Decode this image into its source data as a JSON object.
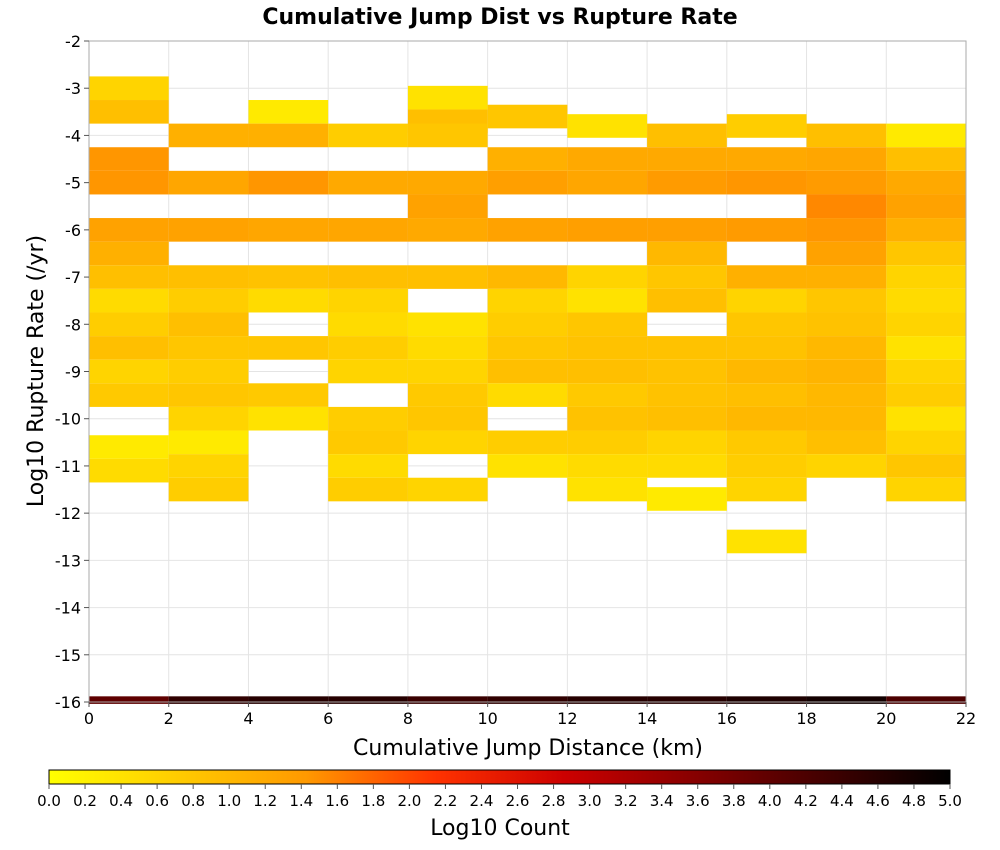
{
  "chart_data": {
    "type": "heatmap",
    "title": "Cumulative Jump Dist vs Rupture Rate",
    "xlabel": "Cumulative Jump Distance (km)",
    "ylabel": "Log10 Rupture Rate (/yr)",
    "xlim": [
      0,
      22
    ],
    "ylim": [
      -16,
      -2
    ],
    "x_ticks": [
      "0",
      "2",
      "4",
      "6",
      "8",
      "10",
      "12",
      "14",
      "16",
      "18",
      "20",
      "22"
    ],
    "y_ticks": [
      "-2",
      "-3",
      "-4",
      "-5",
      "-6",
      "-7",
      "-8",
      "-9",
      "-10",
      "-11",
      "-12",
      "-13",
      "-14",
      "-15",
      "-16"
    ],
    "grid": true,
    "x_bin_width": 2,
    "y_bin_height": 0.1,
    "colorbar": {
      "label": "Log10 Count",
      "range": [
        0,
        5
      ],
      "ticks": [
        "0.0",
        "0.2",
        "0.4",
        "0.6",
        "0.8",
        "1.0",
        "1.2",
        "1.4",
        "1.6",
        "1.8",
        "2.0",
        "2.2",
        "2.4",
        "2.6",
        "2.8",
        "3.0",
        "3.2",
        "3.4",
        "3.6",
        "3.8",
        "4.0",
        "4.2",
        "4.4",
        "4.6",
        "4.8",
        "5.0"
      ],
      "colors": [
        "#ffff00",
        "#ffcc00",
        "#ff9900",
        "#ff3300",
        "#cc0000",
        "#880000",
        "#440000",
        "#000000"
      ],
      "placement": "bottom"
    },
    "columns": [
      {
        "x": 1,
        "cells": [
          [
            -3.0,
            0.6
          ],
          [
            -3.5,
            0.9
          ],
          [
            -4.5,
            1.45
          ],
          [
            -5.0,
            1.45
          ],
          [
            -6.0,
            1.3
          ],
          [
            -6.5,
            1.1
          ],
          [
            -7.0,
            0.9
          ],
          [
            -7.5,
            0.5
          ],
          [
            -8.0,
            0.7
          ],
          [
            -8.5,
            0.9
          ],
          [
            -9.0,
            0.6
          ],
          [
            -9.5,
            0.75
          ],
          [
            -10.6,
            0.3
          ],
          [
            -11.1,
            0.5
          ]
        ]
      },
      {
        "x": 3,
        "cells": [
          [
            -4.0,
            1.1
          ],
          [
            -5.0,
            1.25
          ],
          [
            -6.0,
            1.3
          ],
          [
            -7.0,
            0.9
          ],
          [
            -7.5,
            0.7
          ],
          [
            -8.0,
            0.9
          ],
          [
            -8.5,
            0.8
          ],
          [
            -9.0,
            0.7
          ],
          [
            -9.5,
            0.8
          ],
          [
            -10.0,
            0.6
          ],
          [
            -10.5,
            0.3
          ],
          [
            -11.0,
            0.6
          ],
          [
            -11.5,
            0.7
          ]
        ]
      },
      {
        "x": 5,
        "cells": [
          [
            -3.5,
            0.3
          ],
          [
            -4.0,
            1.1
          ],
          [
            -5.0,
            1.45
          ],
          [
            -6.0,
            1.25
          ],
          [
            -7.0,
            0.85
          ],
          [
            -7.5,
            0.5
          ],
          [
            -8.5,
            0.8
          ],
          [
            -9.5,
            0.75
          ],
          [
            -10.0,
            0.4
          ]
        ]
      },
      {
        "x": 7,
        "cells": [
          [
            -4.0,
            0.7
          ],
          [
            -5.0,
            1.2
          ],
          [
            -6.0,
            1.25
          ],
          [
            -7.0,
            0.9
          ],
          [
            -7.5,
            0.6
          ],
          [
            -8.0,
            0.5
          ],
          [
            -8.5,
            0.7
          ],
          [
            -9.0,
            0.6
          ],
          [
            -10.0,
            0.7
          ],
          [
            -10.5,
            0.75
          ],
          [
            -11.0,
            0.5
          ],
          [
            -11.5,
            0.7
          ]
        ]
      },
      {
        "x": 9,
        "cells": [
          [
            -3.2,
            0.4
          ],
          [
            -3.7,
            0.9
          ],
          [
            -4.0,
            0.8
          ],
          [
            -5.0,
            1.2
          ],
          [
            -5.5,
            1.3
          ],
          [
            -6.0,
            1.2
          ],
          [
            -7.0,
            0.9
          ],
          [
            -8.0,
            0.4
          ],
          [
            -8.5,
            0.5
          ],
          [
            -9.0,
            0.6
          ],
          [
            -9.5,
            0.75
          ],
          [
            -10.0,
            0.8
          ],
          [
            -10.5,
            0.6
          ],
          [
            -11.5,
            0.6
          ]
        ]
      },
      {
        "x": 11,
        "cells": [
          [
            -3.6,
            0.8
          ],
          [
            -4.5,
            1.1
          ],
          [
            -5.0,
            1.35
          ],
          [
            -6.0,
            1.3
          ],
          [
            -7.0,
            1.0
          ],
          [
            -7.5,
            0.6
          ],
          [
            -8.0,
            0.7
          ],
          [
            -8.5,
            0.8
          ],
          [
            -9.0,
            0.9
          ],
          [
            -9.5,
            0.5
          ],
          [
            -10.5,
            0.7
          ],
          [
            -11.0,
            0.4
          ]
        ]
      },
      {
        "x": 13,
        "cells": [
          [
            -3.8,
            0.4
          ],
          [
            -4.5,
            1.2
          ],
          [
            -5.0,
            1.25
          ],
          [
            -6.0,
            1.35
          ],
          [
            -7.0,
            0.6
          ],
          [
            -7.5,
            0.4
          ],
          [
            -8.0,
            0.8
          ],
          [
            -8.5,
            0.85
          ],
          [
            -9.0,
            0.9
          ],
          [
            -9.5,
            0.75
          ],
          [
            -10.0,
            0.85
          ],
          [
            -10.5,
            0.7
          ],
          [
            -11.0,
            0.5
          ],
          [
            -11.5,
            0.4
          ]
        ]
      },
      {
        "x": 15,
        "cells": [
          [
            -4.0,
            0.9
          ],
          [
            -4.5,
            1.2
          ],
          [
            -5.0,
            1.4
          ],
          [
            -6.0,
            1.35
          ],
          [
            -6.5,
            1.0
          ],
          [
            -7.0,
            0.8
          ],
          [
            -7.5,
            0.9
          ],
          [
            -8.5,
            0.85
          ],
          [
            -9.0,
            0.85
          ],
          [
            -9.5,
            0.85
          ],
          [
            -10.0,
            0.9
          ],
          [
            -10.5,
            0.6
          ],
          [
            -11.0,
            0.5
          ],
          [
            -11.7,
            0.3
          ]
        ]
      },
      {
        "x": 17,
        "cells": [
          [
            -3.8,
            0.7
          ],
          [
            -4.5,
            1.2
          ],
          [
            -5.0,
            1.45
          ],
          [
            -6.0,
            1.4
          ],
          [
            -7.0,
            1.1
          ],
          [
            -7.5,
            0.6
          ],
          [
            -8.0,
            0.8
          ],
          [
            -8.5,
            0.85
          ],
          [
            -9.0,
            1.0
          ],
          [
            -9.5,
            0.9
          ],
          [
            -10.0,
            1.0
          ],
          [
            -10.5,
            0.75
          ],
          [
            -11.0,
            0.7
          ],
          [
            -11.5,
            0.6
          ],
          [
            -12.6,
            0.4
          ]
        ]
      },
      {
        "x": 19,
        "cells": [
          [
            -4.0,
            0.9
          ],
          [
            -4.5,
            1.25
          ],
          [
            -5.0,
            1.4
          ],
          [
            -5.5,
            1.55
          ],
          [
            -6.0,
            1.45
          ],
          [
            -6.5,
            1.3
          ],
          [
            -7.0,
            1.1
          ],
          [
            -7.5,
            0.8
          ],
          [
            -8.0,
            0.85
          ],
          [
            -8.5,
            1.0
          ],
          [
            -9.0,
            1.05
          ],
          [
            -9.5,
            1.0
          ],
          [
            -10.0,
            1.0
          ],
          [
            -10.5,
            0.9
          ],
          [
            -11.0,
            0.6
          ]
        ]
      },
      {
        "x": 21,
        "cells": [
          [
            -4.0,
            0.3
          ],
          [
            -4.5,
            0.9
          ],
          [
            -5.0,
            1.2
          ],
          [
            -5.5,
            1.3
          ],
          [
            -6.0,
            1.1
          ],
          [
            -6.5,
            0.8
          ],
          [
            -7.0,
            0.6
          ],
          [
            -7.5,
            0.5
          ],
          [
            -8.0,
            0.6
          ],
          [
            -8.5,
            0.4
          ],
          [
            -9.0,
            0.6
          ],
          [
            -9.5,
            0.7
          ],
          [
            -10.0,
            0.4
          ],
          [
            -10.5,
            0.6
          ],
          [
            -11.0,
            0.8
          ],
          [
            -11.5,
            0.6
          ]
        ]
      }
    ],
    "bottom_row": {
      "y": -16,
      "values": [
        4.0,
        4.5,
        4.6,
        4.6,
        4.4,
        4.5,
        4.6,
        4.6,
        4.7,
        4.8,
        4.2
      ]
    }
  }
}
